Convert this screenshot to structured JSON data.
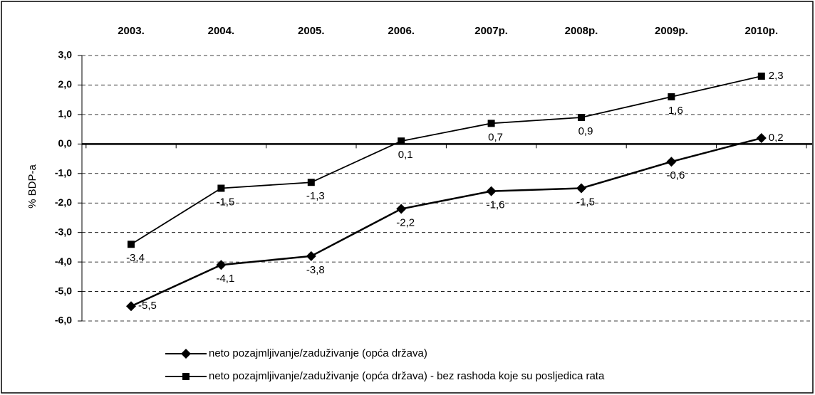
{
  "chart_data": {
    "type": "line",
    "categories": [
      "2003.",
      "2004.",
      "2005.",
      "2006.",
      "2007p.",
      "2008p.",
      "2009p.",
      "2010p."
    ],
    "y_label": "% BDP-a",
    "ylim": [
      -6,
      3
    ],
    "yticks": [
      {
        "value": 3,
        "label": "3,0"
      },
      {
        "value": 2,
        "label": "2,0"
      },
      {
        "value": 1,
        "label": "1,0"
      },
      {
        "value": 0,
        "label": "0,0"
      },
      {
        "value": -1,
        "label": "-1,0"
      },
      {
        "value": -2,
        "label": "-2,0"
      },
      {
        "value": -3,
        "label": "-3,0"
      },
      {
        "value": -4,
        "label": "-4,0"
      },
      {
        "value": -5,
        "label": "-5,0"
      },
      {
        "value": -6,
        "label": "-6,0"
      }
    ],
    "grid": true,
    "series": [
      {
        "name": "neto pozajmljivanje/zaduživanje (opća država)",
        "color": "#000000",
        "marker": "diamond",
        "values": [
          -5.5,
          -4.1,
          -3.8,
          -2.2,
          -1.6,
          -1.5,
          -0.6,
          0.2
        ],
        "value_labels": [
          "-5,5",
          "-4,1",
          "-3,8",
          "-2,2",
          "-1,6",
          "-1,5",
          "-0,6",
          "0,2"
        ]
      },
      {
        "name": "neto pozajmljivanje/zaduživanje (opća država) - bez rashoda koje su posljedica rata",
        "color": "#000000",
        "marker": "square",
        "values": [
          -3.4,
          -1.5,
          -1.3,
          0.1,
          0.7,
          0.9,
          1.6,
          2.3
        ],
        "value_labels": [
          "-3,4",
          "-1,5",
          "-1,3",
          "0,1",
          "0,7",
          "0,9",
          "1,6",
          "2,3"
        ]
      }
    ]
  }
}
